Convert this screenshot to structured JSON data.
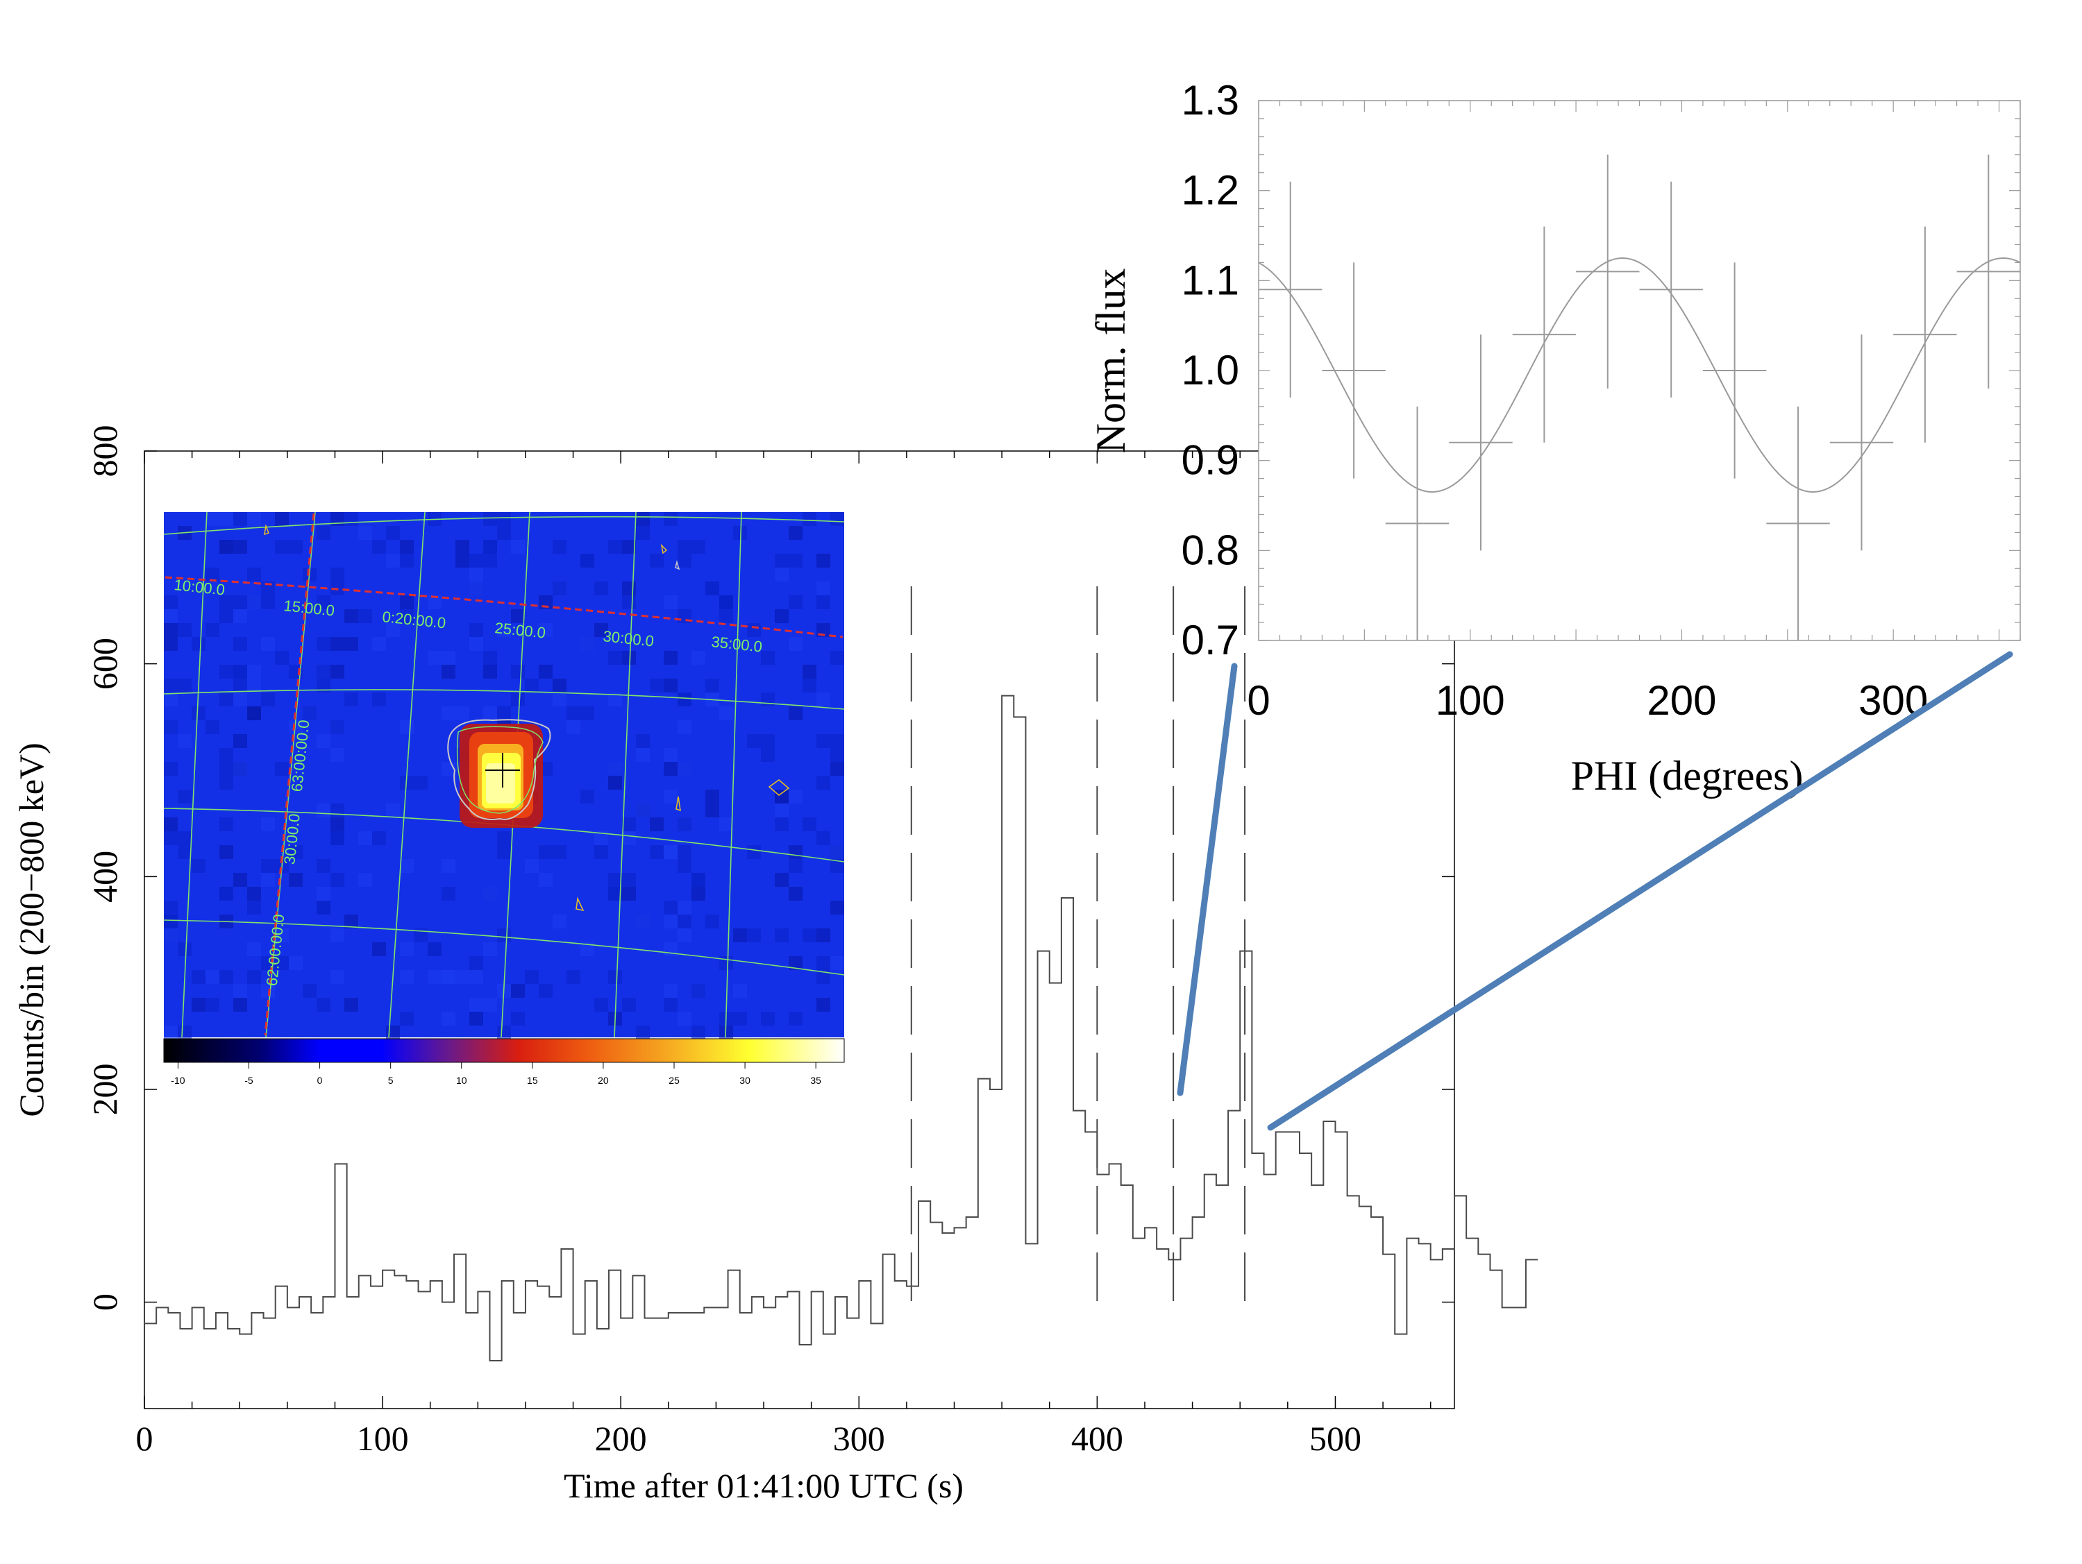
{
  "chart_data": [
    {
      "type": "line",
      "xlabel": "Time after 01:41:00 UTC (s)",
      "ylabel": "Counts/bin (200−800 keV)",
      "xlim": [
        0,
        550
      ],
      "ylim": [
        -100,
        800
      ],
      "x_ticks": [
        "0",
        "100",
        "200",
        "300",
        "400",
        "500"
      ],
      "y_ticks": [
        "0",
        "200",
        "400",
        "600",
        "800"
      ],
      "grid": false,
      "bin_width": 5,
      "series": [
        {
          "x_start": 0,
          "values": [
            -20,
            -5,
            -10,
            -25,
            -5,
            -25,
            -10,
            -25,
            -30,
            -10,
            -15,
            15,
            -5,
            5,
            -10,
            5,
            130,
            5,
            25,
            15,
            30,
            25,
            20,
            10,
            20,
            0,
            45,
            -10,
            10,
            -55,
            20,
            -10,
            20,
            15,
            5,
            50,
            -30,
            20,
            -25,
            30,
            -15,
            25,
            -15,
            -15,
            -10,
            -10,
            -10,
            -5,
            -5,
            30,
            -10,
            5,
            -5,
            5,
            10,
            -40,
            10,
            -30,
            5,
            -15,
            20,
            -20,
            45,
            20,
            15,
            95,
            75,
            65,
            70,
            80,
            210,
            200,
            570,
            550,
            55,
            330,
            300,
            380,
            180,
            160,
            120,
            130,
            110,
            60,
            70,
            50,
            40,
            60,
            80,
            120,
            110,
            180,
            330,
            140,
            120,
            160,
            160,
            140,
            110,
            170,
            160,
            100,
            90,
            80,
            45,
            -30,
            60,
            55,
            40,
            50,
            100,
            60,
            45,
            30,
            -5,
            -5,
            40
          ]
        }
      ],
      "markers_x": [
        322,
        400,
        432,
        462
      ],
      "annotations": [
        "422.7",
        "452.8"
      ]
    },
    {
      "type": "scatter",
      "xlabel": "PHI (degrees)",
      "ylabel": "Norm. flux",
      "xlim": [
        0,
        360
      ],
      "ylim": [
        0.7,
        1.3
      ],
      "x_ticks": [
        "0",
        "100",
        "200",
        "300"
      ],
      "y_ticks": [
        "0.7",
        "0.8",
        "0.9",
        "1.0",
        "1.1",
        "1.2",
        "1.3"
      ],
      "points": [
        {
          "x": 15,
          "y": 1.09,
          "xerr": 15,
          "yerr": 0.12
        },
        {
          "x": 45,
          "y": 1.0,
          "xerr": 15,
          "yerr": 0.12
        },
        {
          "x": 75,
          "y": 0.83,
          "xerr": 15,
          "yerr": 0.13
        },
        {
          "x": 105,
          "y": 0.92,
          "xerr": 15,
          "yerr": 0.12
        },
        {
          "x": 135,
          "y": 1.04,
          "xerr": 15,
          "yerr": 0.12
        },
        {
          "x": 165,
          "y": 1.11,
          "xerr": 15,
          "yerr": 0.13
        },
        {
          "x": 195,
          "y": 1.09,
          "xerr": 15,
          "yerr": 0.12
        },
        {
          "x": 225,
          "y": 1.0,
          "xerr": 15,
          "yerr": 0.12
        },
        {
          "x": 255,
          "y": 0.83,
          "xerr": 15,
          "yerr": 0.13
        },
        {
          "x": 285,
          "y": 0.92,
          "xerr": 15,
          "yerr": 0.12
        },
        {
          "x": 315,
          "y": 1.04,
          "xerr": 15,
          "yerr": 0.12
        },
        {
          "x": 345,
          "y": 1.11,
          "xerr": 15,
          "yerr": 0.13
        }
      ],
      "model": {
        "type": "cos2phi",
        "mean": 0.995,
        "amplitude": 0.13,
        "phase_deg": 172
      }
    },
    {
      "type": "heatmap",
      "description_labels_ra": [
        "10:00.0",
        "15:00.0",
        "0:20:00.0",
        "25:00.0",
        "30:00.0",
        "35:00.0"
      ],
      "description_labels_dec": [
        "63:00:00.0",
        "30:00.0",
        "62:00:00.0"
      ],
      "colorbar_ticks": [
        "-10",
        "-5",
        "0",
        "5",
        "10",
        "15",
        "20",
        "25",
        "30",
        "35"
      ],
      "colorbar_range": [
        -11,
        37
      ]
    }
  ],
  "colors": {
    "axes": "#000000",
    "histogram": "#4a4a4a",
    "inset_lines": "#9a9a9a",
    "connector": "#4f7fb6",
    "map_background": "#1430e6",
    "map_grid": "#7fe36a",
    "map_label": "#7df06a",
    "map_ra_line": "#e03030",
    "map_source_hot": "#ffff40",
    "map_source_warm": "#d81e10"
  }
}
